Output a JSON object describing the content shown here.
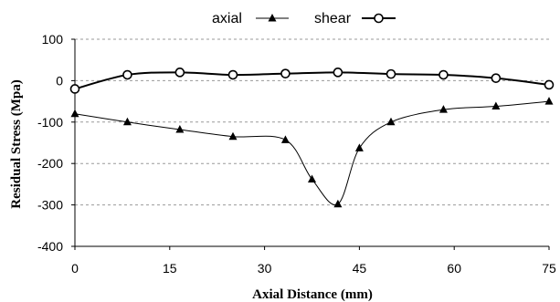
{
  "chart_data": {
    "type": "line",
    "xlabel": "Axial Distance (mm)",
    "ylabel": "Residual Stress (Mpa)",
    "xlim": [
      0,
      75
    ],
    "ylim": [
      -400,
      100
    ],
    "xticks": [
      0,
      15,
      30,
      45,
      60,
      75
    ],
    "yticks": [
      100,
      0,
      -100,
      -200,
      -300,
      -400
    ],
    "grid": "horizontal dashed",
    "legend_position": "top-center",
    "series": [
      {
        "name": "axial",
        "marker": "triangle",
        "x": [
          0,
          8.3,
          16.6,
          25,
          33.3,
          37.5,
          41.6,
          45,
          50,
          58.3,
          66.6,
          75
        ],
        "y": [
          -80,
          -100,
          -118,
          -135,
          -143,
          -238,
          -298,
          -163,
          -100,
          -70,
          -62,
          -50
        ]
      },
      {
        "name": "shear",
        "marker": "circle",
        "x": [
          0,
          8.3,
          16.6,
          25,
          33.3,
          41.6,
          50,
          58.3,
          66.6,
          75
        ],
        "y": [
          -20,
          14,
          20,
          14,
          17,
          20,
          16,
          14,
          6,
          -10
        ]
      }
    ]
  }
}
